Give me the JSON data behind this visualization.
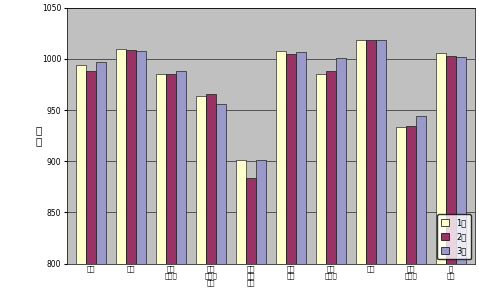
{
  "categories": [
    "食料",
    "住居",
    "光熱\n・水道",
    "家具\n・家事\n用品",
    "被服\n及び\n履物",
    "保健\n医療",
    "交通\n・通信",
    "教育",
    "教養\n・娯楽",
    "諸\n雑費"
  ],
  "series": {
    "1月": [
      994,
      1010,
      985,
      964,
      901,
      1008,
      985,
      1018,
      933,
      1006
    ],
    "2月": [
      988,
      1009,
      985,
      966,
      884,
      1005,
      988,
      1018,
      934,
      1003
    ],
    "3月": [
      997,
      1008,
      988,
      956,
      901,
      1007,
      1001,
      1018,
      944,
      1002
    ]
  },
  "colors": {
    "1月": "#FFFFCC",
    "2月": "#993366",
    "3月": "#9999CC"
  },
  "ylabel": "指\n数",
  "ylim": [
    800,
    1050
  ],
  "yticks": [
    800,
    850,
    900,
    950,
    1000,
    1050
  ],
  "background_color": "#C0C0C0",
  "fig_bg": "#FFFFFF"
}
